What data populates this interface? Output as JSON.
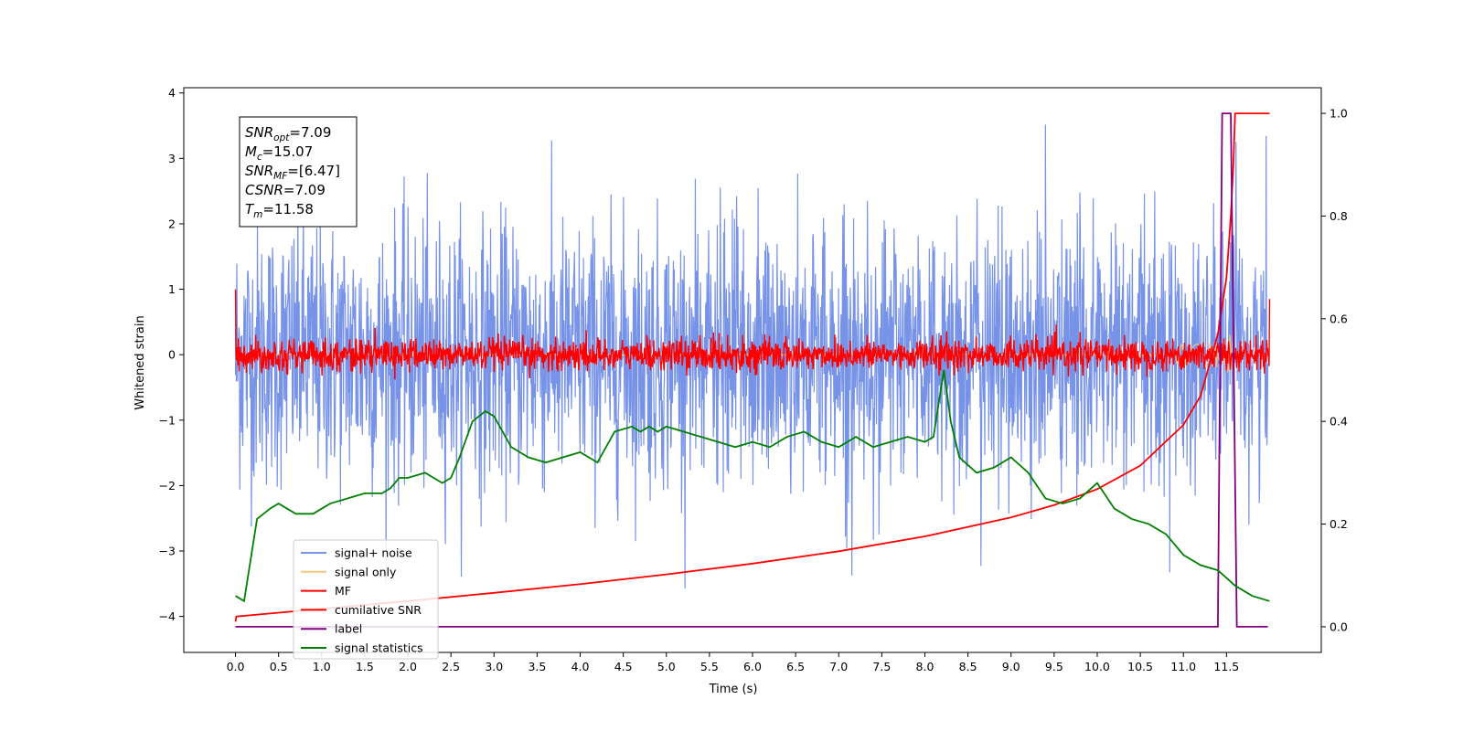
{
  "chart_data": {
    "type": "line",
    "title": "",
    "xlabel": "Time (s)",
    "ylabel": "Whitened strain",
    "xlim": [
      -0.6,
      12.6
    ],
    "ylim": [
      -4.55,
      4.08
    ],
    "y2lim": [
      -0.05,
      1.05
    ],
    "x_ticks": [
      "0.0",
      "0.5",
      "1.0",
      "1.5",
      "2.0",
      "2.5",
      "3.0",
      "3.5",
      "4.0",
      "4.5",
      "5.0",
      "5.5",
      "6.0",
      "6.5",
      "7.0",
      "7.5",
      "8.0",
      "8.5",
      "9.0",
      "9.5",
      "10.0",
      "10.5",
      "11.0",
      "11.5"
    ],
    "y_ticks": [
      "4",
      "3",
      "2",
      "1",
      "0",
      "−1",
      "−2",
      "−3",
      "−4"
    ],
    "y2_ticks": [
      "1.0",
      "0.8",
      "0.6",
      "0.4",
      "0.2",
      "0.0"
    ],
    "grid": false,
    "legend_position": "lower-left",
    "annotation": {
      "lines": [
        {
          "main": "SNR",
          "sub": "opt",
          "value": "=7.09"
        },
        {
          "main": "M",
          "sub": "c",
          "value": "=15.07"
        },
        {
          "main": "SNR",
          "sub": "MF",
          "value": "=[6.47]"
        },
        {
          "main": "CSNR",
          "sub": "",
          "value": "=7.09"
        },
        {
          "main": "T",
          "sub": "m",
          "value": "=11.58"
        }
      ]
    },
    "series": [
      {
        "name": "signal+ noise",
        "color": "#7793e8",
        "axis": "left",
        "kind": "noise",
        "x_range": [
          0,
          11.98
        ],
        "center": 0.0,
        "sigma": 1.0,
        "max_abs": 3.7
      },
      {
        "name": "signal only",
        "color": "#f5c77e",
        "axis": "left",
        "kind": "chirp",
        "x_range": [
          0,
          11.58
        ],
        "peak_amplitude": 0.55
      },
      {
        "name": "MF",
        "color": "#ff0000",
        "axis": "left",
        "kind": "noise",
        "x_range": [
          0,
          12.0
        ],
        "center": 0.0,
        "sigma": 0.12,
        "max_abs": 0.67,
        "start_value": 1.0,
        "end_value": 0.85
      },
      {
        "name": "cumilative SNR",
        "color": "#ff0000",
        "axis": "right",
        "kind": "curve",
        "x": [
          0,
          0.01,
          1,
          2,
          3,
          4,
          5,
          6,
          7,
          8,
          9,
          9.5,
          10,
          10.5,
          11,
          11.2,
          11.4,
          11.5,
          11.55,
          11.58,
          11.6,
          12.0
        ],
        "y": [
          0.01,
          0.02,
          0.035,
          0.05,
          0.066,
          0.083,
          0.102,
          0.123,
          0.147,
          0.176,
          0.213,
          0.237,
          0.268,
          0.314,
          0.393,
          0.45,
          0.57,
          0.68,
          0.8,
          0.9,
          1.0,
          1.0
        ]
      },
      {
        "name": "label",
        "color": "#800080",
        "axis": "right",
        "kind": "curve",
        "x": [
          0,
          11.4,
          11.45,
          11.55,
          11.62,
          11.98
        ],
        "y": [
          0.0,
          0.0,
          1.0,
          1.0,
          0.0,
          0.0
        ]
      },
      {
        "name": "signal statistics",
        "color": "#008000",
        "axis": "right",
        "kind": "curve",
        "x": [
          0.0,
          0.1,
          0.25,
          0.4,
          0.5,
          0.7,
          0.9,
          1.0,
          1.1,
          1.3,
          1.5,
          1.7,
          1.8,
          1.9,
          2.0,
          2.2,
          2.4,
          2.5,
          2.6,
          2.75,
          2.9,
          3.0,
          3.2,
          3.4,
          3.6,
          3.8,
          4.0,
          4.2,
          4.4,
          4.6,
          4.7,
          4.8,
          4.9,
          5.0,
          5.2,
          5.4,
          5.6,
          5.8,
          6.0,
          6.2,
          6.4,
          6.6,
          6.8,
          7.0,
          7.2,
          7.4,
          7.6,
          7.8,
          8.0,
          8.1,
          8.22,
          8.3,
          8.4,
          8.6,
          8.8,
          9.0,
          9.2,
          9.4,
          9.6,
          9.8,
          10.0,
          10.2,
          10.4,
          10.6,
          10.8,
          11.0,
          11.2,
          11.4,
          11.6,
          11.8,
          12.0
        ],
        "y": [
          0.06,
          0.05,
          0.21,
          0.23,
          0.24,
          0.22,
          0.22,
          0.23,
          0.24,
          0.25,
          0.26,
          0.26,
          0.27,
          0.29,
          0.29,
          0.3,
          0.28,
          0.29,
          0.33,
          0.4,
          0.42,
          0.41,
          0.35,
          0.33,
          0.32,
          0.33,
          0.34,
          0.32,
          0.38,
          0.39,
          0.38,
          0.39,
          0.38,
          0.39,
          0.38,
          0.37,
          0.36,
          0.35,
          0.36,
          0.35,
          0.37,
          0.38,
          0.36,
          0.35,
          0.37,
          0.35,
          0.36,
          0.37,
          0.36,
          0.37,
          0.5,
          0.4,
          0.33,
          0.3,
          0.31,
          0.33,
          0.3,
          0.25,
          0.24,
          0.25,
          0.28,
          0.23,
          0.21,
          0.2,
          0.18,
          0.14,
          0.12,
          0.11,
          0.08,
          0.06,
          0.05
        ]
      }
    ]
  }
}
